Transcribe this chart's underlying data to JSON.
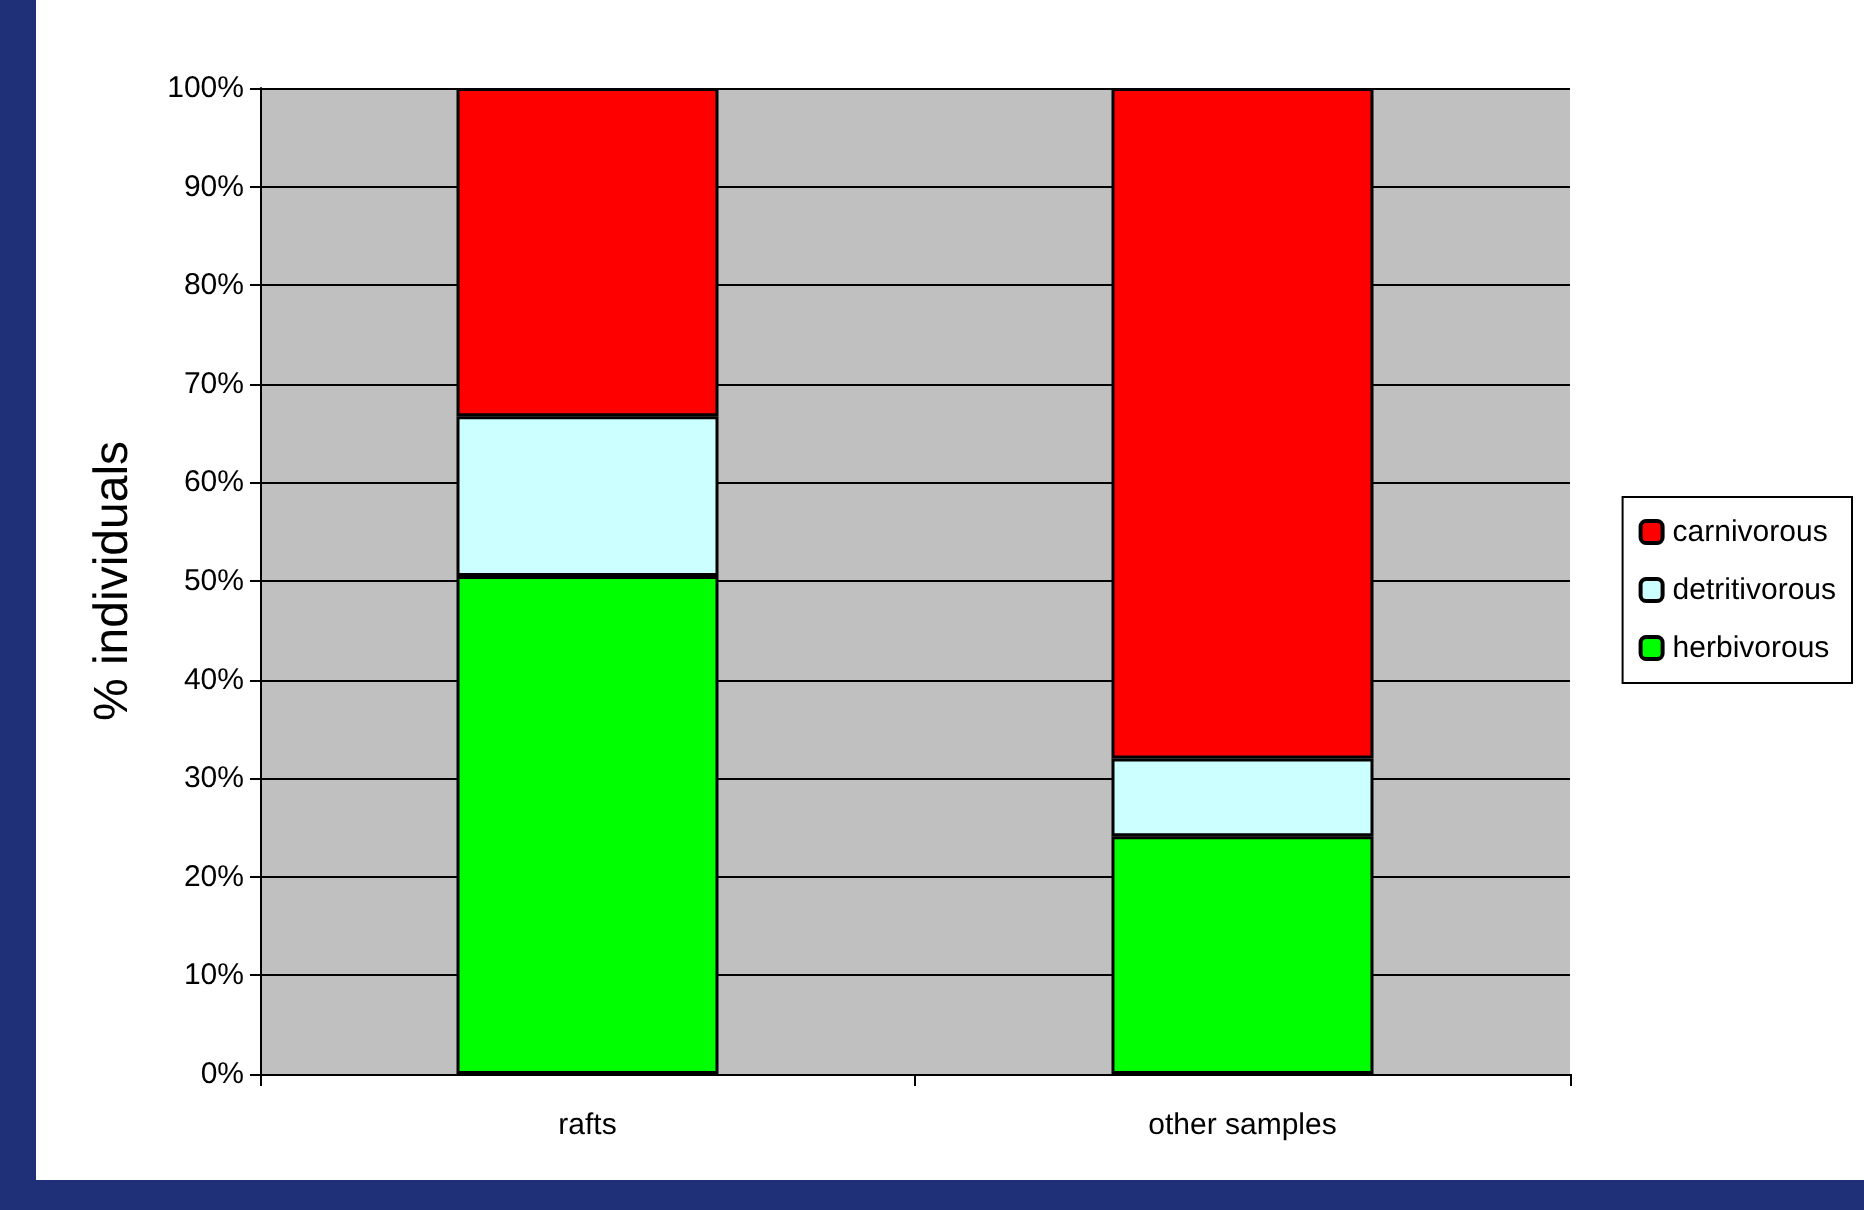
{
  "chart_data": {
    "type": "bar",
    "stacked": true,
    "ylabel": "% individuals",
    "categories": [
      "rafts",
      "other samples"
    ],
    "series": [
      {
        "name": "herbivorous",
        "color": "#00ff00",
        "values": [
          50.5,
          24.1
        ]
      },
      {
        "name": "detritivorous",
        "color": "#ccffff",
        "values": [
          16.2,
          7.9
        ]
      },
      {
        "name": "carnivorous",
        "color": "#ff0000",
        "values": [
          33.3,
          68.0
        ]
      }
    ],
    "ylim": [
      0,
      100
    ],
    "yticks": [
      {
        "value": 0,
        "label": "0%"
      },
      {
        "value": 10,
        "label": "10%"
      },
      {
        "value": 20,
        "label": "20%"
      },
      {
        "value": 30,
        "label": "30%"
      },
      {
        "value": 40,
        "label": "40%"
      },
      {
        "value": 50,
        "label": "50%"
      },
      {
        "value": 60,
        "label": "60%"
      },
      {
        "value": 70,
        "label": "70%"
      },
      {
        "value": 80,
        "label": "80%"
      },
      {
        "value": 90,
        "label": "90%"
      },
      {
        "value": 100,
        "label": "100%"
      }
    ],
    "grid": "y",
    "legend": "right"
  }
}
